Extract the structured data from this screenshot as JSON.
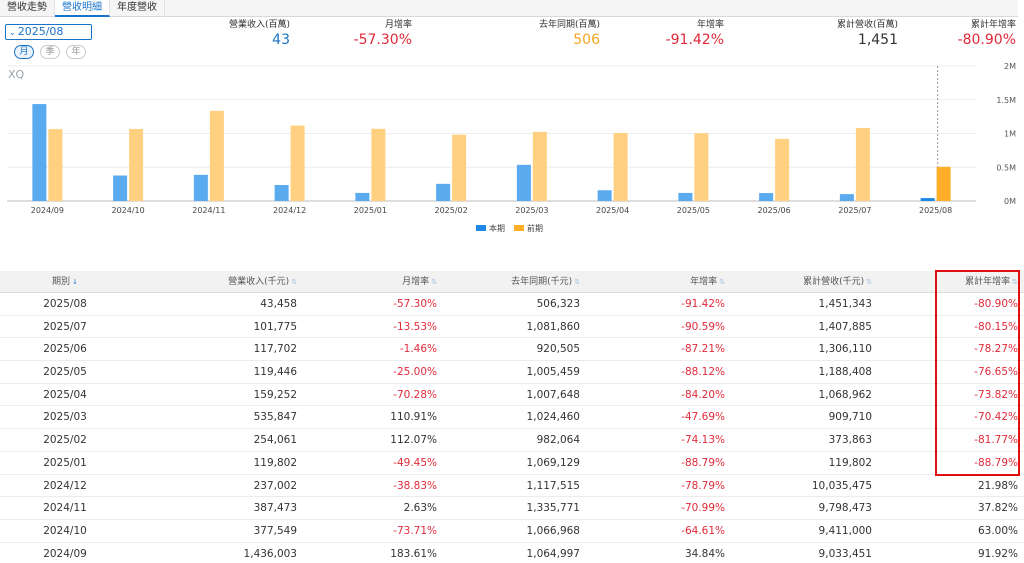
{
  "tabs": [
    {
      "label": "營收走勢",
      "active": false
    },
    {
      "label": "營收明細",
      "active": true
    },
    {
      "label": "年度營收",
      "active": false
    }
  ],
  "period_select": {
    "value": "2025/08",
    "icon": "chevron-down-icon"
  },
  "period_types": [
    {
      "label": "月",
      "active": true
    },
    {
      "label": "季",
      "active": false
    },
    {
      "label": "年",
      "active": false
    }
  ],
  "stats": [
    {
      "label": "營業收入(百萬)",
      "value": "43",
      "color": "#1a73c8"
    },
    {
      "label": "月增率",
      "value": "-57.30%",
      "color": "#e02a3a"
    },
    {
      "label": "去年同期(百萬)",
      "value": "506",
      "color": "#f5a623"
    },
    {
      "label": "年增率",
      "value": "-91.42%",
      "color": "#e02a3a"
    },
    {
      "label": "累計營收(百萬)",
      "value": "1,451",
      "color": "#333333"
    },
    {
      "label": "累計年增率",
      "value": "-80.90%",
      "color": "#e02a3a"
    }
  ],
  "chart_data": {
    "type": "bar",
    "watermark": "XQ",
    "categories": [
      "2024/09",
      "2024/10",
      "2024/11",
      "2024/12",
      "2025/01",
      "2025/02",
      "2025/03",
      "2025/04",
      "2025/05",
      "2025/06",
      "2025/07",
      "2025/08"
    ],
    "series": [
      {
        "name": "本期",
        "color": "#5aaaf0",
        "values": [
          1436003,
          377549,
          387473,
          237002,
          119802,
          254061,
          535847,
          159252,
          119446,
          117702,
          101775,
          43458
        ]
      },
      {
        "name": "前期",
        "color": "#ffd080",
        "values": [
          1064997,
          1066968,
          1335771,
          1117515,
          1069129,
          982064,
          1024460,
          1007648,
          1005459,
          920505,
          1081860,
          506323
        ]
      }
    ],
    "y_ticks": [
      {
        "value": 0,
        "label": "0M"
      },
      {
        "value": 500000,
        "label": "0.5M"
      },
      {
        "value": 1000000,
        "label": "1M"
      },
      {
        "value": 1500000,
        "label": "1.5M"
      },
      {
        "value": 2000000,
        "label": "2M"
      }
    ],
    "ylim": [
      0,
      2000000
    ],
    "highlight_index": 11,
    "highlight_colors": {
      "current": "#1e88e5",
      "previous": "#ffae2a"
    }
  },
  "table": {
    "headers": [
      "期別",
      "營業收入(千元)",
      "月增率",
      "去年同期(千元)",
      "年增率",
      "累計營收(千元)",
      "累計年增率"
    ],
    "sort_icon": "sort-icon",
    "rows": [
      [
        "2025/08",
        "43,458",
        "-57.30%",
        "506,323",
        "-91.42%",
        "1,451,343",
        "-80.90%"
      ],
      [
        "2025/07",
        "101,775",
        "-13.53%",
        "1,081,860",
        "-90.59%",
        "1,407,885",
        "-80.15%"
      ],
      [
        "2025/06",
        "117,702",
        "-1.46%",
        "920,505",
        "-87.21%",
        "1,306,110",
        "-78.27%"
      ],
      [
        "2025/05",
        "119,446",
        "-25.00%",
        "1,005,459",
        "-88.12%",
        "1,188,408",
        "-76.65%"
      ],
      [
        "2025/04",
        "159,252",
        "-70.28%",
        "1,007,648",
        "-84.20%",
        "1,068,962",
        "-73.82%"
      ],
      [
        "2025/03",
        "535,847",
        "110.91%",
        "1,024,460",
        "-47.69%",
        "909,710",
        "-70.42%"
      ],
      [
        "2025/02",
        "254,061",
        "112.07%",
        "982,064",
        "-74.13%",
        "373,863",
        "-81.77%"
      ],
      [
        "2025/01",
        "119,802",
        "-49.45%",
        "1,069,129",
        "-88.79%",
        "119,802",
        "-88.79%"
      ],
      [
        "2024/12",
        "237,002",
        "-38.83%",
        "1,117,515",
        "-78.79%",
        "10,035,475",
        "21.98%"
      ],
      [
        "2024/11",
        "387,473",
        "2.63%",
        "1,335,771",
        "-70.99%",
        "9,798,473",
        "37.82%"
      ],
      [
        "2024/10",
        "377,549",
        "-73.71%",
        "1,066,968",
        "-64.61%",
        "9,411,000",
        "63.00%"
      ],
      [
        "2024/09",
        "1,436,003",
        "183.61%",
        "1,064,997",
        "34.84%",
        "9,033,451",
        "91.92%"
      ]
    ]
  },
  "colors": {
    "accent": "#1a73c8",
    "negative": "#e02a3a",
    "positive": "#333333",
    "highlight_border": "#e01010"
  }
}
